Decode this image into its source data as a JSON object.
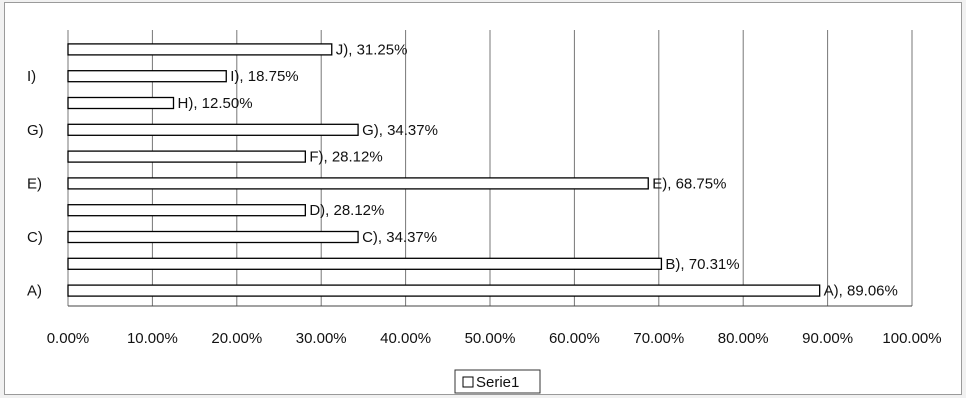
{
  "chart_data": {
    "type": "bar",
    "orientation": "horizontal",
    "categories": [
      "A)",
      "B)",
      "C)",
      "D)",
      "E)",
      "F)",
      "G)",
      "H)",
      "I)",
      "J)"
    ],
    "shown_category_ticks": [
      "A)",
      "C)",
      "E)",
      "G)",
      "I)"
    ],
    "series": [
      {
        "name": "Serie1",
        "values": [
          89.06,
          70.31,
          34.37,
          28.12,
          68.75,
          28.12,
          34.37,
          12.5,
          18.75,
          31.25
        ],
        "data_labels": [
          "A), 89.06%",
          "B), 70.31%",
          "C), 34.37%",
          "D), 28.12%",
          "E), 68.75%",
          "F), 28.12%",
          "G), 34.37%",
          "H), 12.50%",
          "I), 18.75%",
          "J), 31.25%"
        ]
      }
    ],
    "x_ticks": [
      "0.00%",
      "10.00%",
      "20.00%",
      "30.00%",
      "40.00%",
      "50.00%",
      "60.00%",
      "70.00%",
      "80.00%",
      "90.00%",
      "100.00%"
    ],
    "xlim": [
      0,
      100
    ],
    "grid": "vertical",
    "legend": "bottom-center",
    "colors": {
      "bar_fill": "#ffffff",
      "bar_stroke": "#000000",
      "gridline": "#777777"
    }
  }
}
